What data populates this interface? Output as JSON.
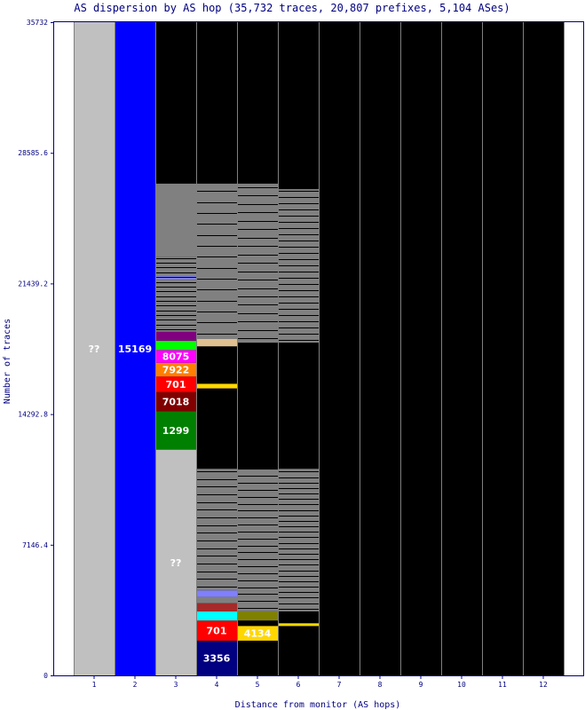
{
  "chart_data": {
    "type": "bar",
    "title": "AS dispersion by AS hop (35,732 traces, 20,807 prefixes, 5,104 ASes)",
    "xlabel": "Distance from monitor (AS hops)",
    "ylabel": "Number of traces",
    "ylim": [
      0,
      35732
    ],
    "yticks": [
      "0",
      "7146.4",
      "14292.8",
      "21439.2",
      "28585.6",
      "35732"
    ],
    "categories": [
      "1",
      "2",
      "3",
      "4",
      "5",
      "6",
      "7",
      "8",
      "9",
      "10",
      "11",
      "12"
    ],
    "background_color": "#000000",
    "grid_color": "#808080",
    "columns": [
      {
        "hop": "1",
        "segments": [
          {
            "label": "??",
            "from": 0,
            "to": 35732,
            "color": "#c0c0c0",
            "show_label": true
          }
        ]
      },
      {
        "hop": "2",
        "segments": [
          {
            "label": "15169",
            "from": 0,
            "to": 35732,
            "color": "#0000ff",
            "show_label": true
          }
        ]
      },
      {
        "hop": "3",
        "segments": [
          {
            "label": "??",
            "from": 0,
            "to": 12350,
            "color": "#c0c0c0",
            "show_label": true
          },
          {
            "label": "1299",
            "from": 12350,
            "to": 14450,
            "color": "#008000",
            "show_label": true
          },
          {
            "label": "7018",
            "from": 14450,
            "to": 15500,
            "color": "#800000",
            "show_label": true
          },
          {
            "label": "701",
            "from": 15500,
            "to": 16350,
            "color": "#ff0000",
            "show_label": true
          },
          {
            "label": "7922",
            "from": 16350,
            "to": 17100,
            "color": "#ff8000",
            "show_label": true
          },
          {
            "label": "8075",
            "from": 17100,
            "to": 17800,
            "color": "#ff00ff",
            "show_label": true
          },
          {
            "label": "",
            "from": 17800,
            "to": 18300,
            "color": "#00ff00",
            "show_label": false
          },
          {
            "label": "",
            "from": 18300,
            "to": 18800,
            "color": "#800080",
            "show_label": false
          },
          {
            "label": "",
            "from": 18800,
            "to": 22900,
            "color": "#808080",
            "show_label": false
          },
          {
            "label": "",
            "from": 21700,
            "to": 21850,
            "color": "#8080ff",
            "show_label": false
          },
          {
            "label": "",
            "from": 22900,
            "to": 26900,
            "color": "#808080",
            "show_label": false
          }
        ]
      },
      {
        "hop": "4",
        "segments": [
          {
            "label": "3356",
            "from": 0,
            "to": 1900,
            "color": "#000080",
            "show_label": true
          },
          {
            "label": "701",
            "from": 1900,
            "to": 3000,
            "color": "#ff0000",
            "show_label": true
          },
          {
            "label": "",
            "from": 3000,
            "to": 3500,
            "color": "#00ffff",
            "show_label": false
          },
          {
            "label": "",
            "from": 3500,
            "to": 3950,
            "color": "#a52a2a",
            "show_label": false
          },
          {
            "label": "",
            "from": 3950,
            "to": 4300,
            "color": "#808080",
            "show_label": false
          },
          {
            "label": "",
            "from": 4300,
            "to": 4650,
            "color": "#8080ff",
            "show_label": false
          },
          {
            "label": "",
            "from": 4650,
            "to": 11300,
            "color": "#808080",
            "show_label": false
          },
          {
            "label": "",
            "from": 15700,
            "to": 15950,
            "color": "#ffd700",
            "show_label": false
          },
          {
            "label": "",
            "from": 18000,
            "to": 18400,
            "color": "#e0c090",
            "show_label": false
          },
          {
            "label": "",
            "from": 18400,
            "to": 26900,
            "color": "#808080",
            "show_label": false
          }
        ]
      },
      {
        "hop": "5",
        "segments": [
          {
            "label": "4134",
            "from": 1900,
            "to": 2700,
            "color": "#ffd700",
            "show_label": true
          },
          {
            "label": "",
            "from": 3000,
            "to": 3500,
            "color": "#808000",
            "show_label": false
          },
          {
            "label": "",
            "from": 3500,
            "to": 11300,
            "color": "#808080",
            "show_label": false
          },
          {
            "label": "",
            "from": 18200,
            "to": 26900,
            "color": "#808080",
            "show_label": false
          }
        ]
      },
      {
        "hop": "6",
        "segments": [
          {
            "label": "",
            "from": 2700,
            "to": 2850,
            "color": "#ffd700",
            "show_label": false
          },
          {
            "label": "",
            "from": 3500,
            "to": 11300,
            "color": "#808080",
            "show_label": false
          },
          {
            "label": "",
            "from": 18200,
            "to": 26600,
            "color": "#808080",
            "show_label": false
          }
        ]
      }
    ]
  }
}
